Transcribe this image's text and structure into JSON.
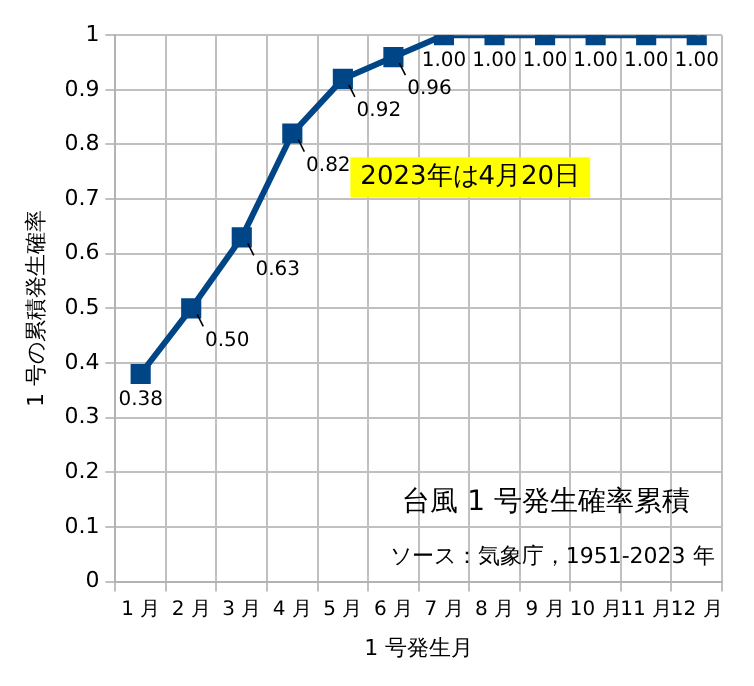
{
  "chart_data": {
    "type": "line",
    "title": "台風 1 号発生確率累積",
    "xlabel": "1 号発生月",
    "ylabel": "1 号の累積発生確率",
    "annotations": [
      "2023年は4月20日",
      "ソース：気象庁，1951-2023 年"
    ],
    "categories": [
      "1 月",
      "2 月",
      "3 月",
      "4 月",
      "5 月",
      "6 月",
      "7 月",
      "8 月",
      "9 月",
      "10 月",
      "11 月",
      "12 月"
    ],
    "series": [
      {
        "color": "#004586",
        "values": [
          0.38,
          0.5,
          0.63,
          0.82,
          0.92,
          0.96,
          1,
          1,
          1,
          1,
          1,
          1
        ],
        "value_labels": [
          "0.38",
          "0.50",
          "0.63",
          "0.82",
          "0.92",
          "0.96",
          "1.00",
          "1.00",
          "1.00",
          "1.00",
          "1.00",
          "1.00"
        ]
      }
    ],
    "ylim": [
      0,
      1
    ],
    "yticks": [
      0,
      0.1,
      0.2,
      0.3,
      0.4,
      0.5,
      0.6,
      0.7,
      0.8,
      0.9,
      1
    ],
    "grid": true,
    "legend": false,
    "marker": "square",
    "line_style": "solid"
  }
}
